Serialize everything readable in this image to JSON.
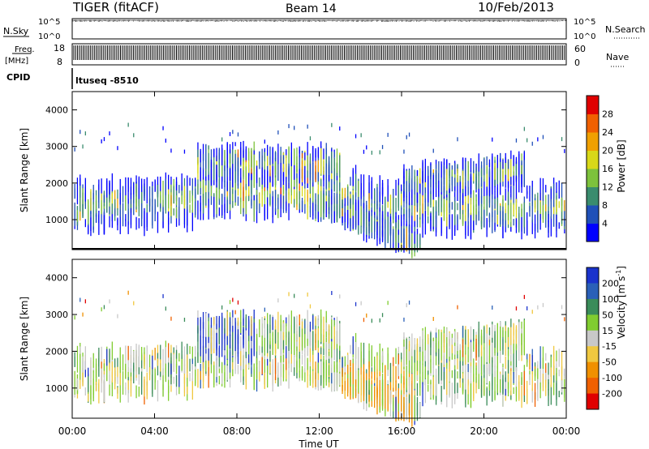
{
  "header": {
    "title": "TIGER (fitACF)",
    "beam": "Beam 14",
    "date": "10/Feb/2013"
  },
  "top_panels": {
    "nsky_label": "N.Sky",
    "nsky_ticks": [
      "10^5",
      "10^0"
    ],
    "nsearch_label": "N.Search",
    "nsearch_ticks": [
      "10^5",
      "10^0"
    ],
    "freq_label": "Freq.",
    "freq_unit": "[MHz]",
    "freq_ticks": [
      "18",
      "8"
    ],
    "nave_label": "Nave",
    "nave_ticks": [
      "60",
      "0"
    ],
    "cpid_label": "CPID",
    "cpid_value": "ltuseq -8510"
  },
  "chart_data": [
    {
      "type": "heatmap",
      "name": "power",
      "ylabel": "Slant Range [km]",
      "ylim": [
        180,
        4500
      ],
      "yticks": [
        1000,
        2000,
        3000,
        4000
      ],
      "xlim": [
        0,
        24
      ],
      "xticks": [
        "00:00",
        "04:00",
        "08:00",
        "12:00",
        "16:00",
        "20:00",
        "00:00"
      ],
      "colorbar": {
        "label": "Power [dB]",
        "ticks": [
          "4",
          "8",
          "12",
          "16",
          "20",
          "24",
          "28"
        ],
        "colors": [
          "#0000ff",
          "#2050b8",
          "#3a8c6e",
          "#7dc23c",
          "#d8d818",
          "#f0a000",
          "#f06000",
          "#e00000"
        ]
      }
    },
    {
      "type": "heatmap",
      "name": "velocity",
      "ylabel": "Slant Range [km]",
      "ylim": [
        180,
        4500
      ],
      "yticks": [
        1000,
        2000,
        3000,
        4000
      ],
      "xlim": [
        0,
        24
      ],
      "xticks": [
        "00:00",
        "04:00",
        "08:00",
        "12:00",
        "16:00",
        "20:00",
        "00:00"
      ],
      "xlabel": "Time UT",
      "colorbar": {
        "label": "Velocity [m s",
        "label_sup": "-1",
        "label_end": "]",
        "ticks": [
          "200",
          "100",
          "50",
          "15",
          "-15",
          "-50",
          "-100",
          "-200"
        ],
        "colors": [
          "#1a33cc",
          "#2a60b8",
          "#3a8c5a",
          "#80cc30",
          "#c8c8c8",
          "#f0c840",
          "#f09000",
          "#f06000",
          "#e00000"
        ]
      }
    }
  ]
}
